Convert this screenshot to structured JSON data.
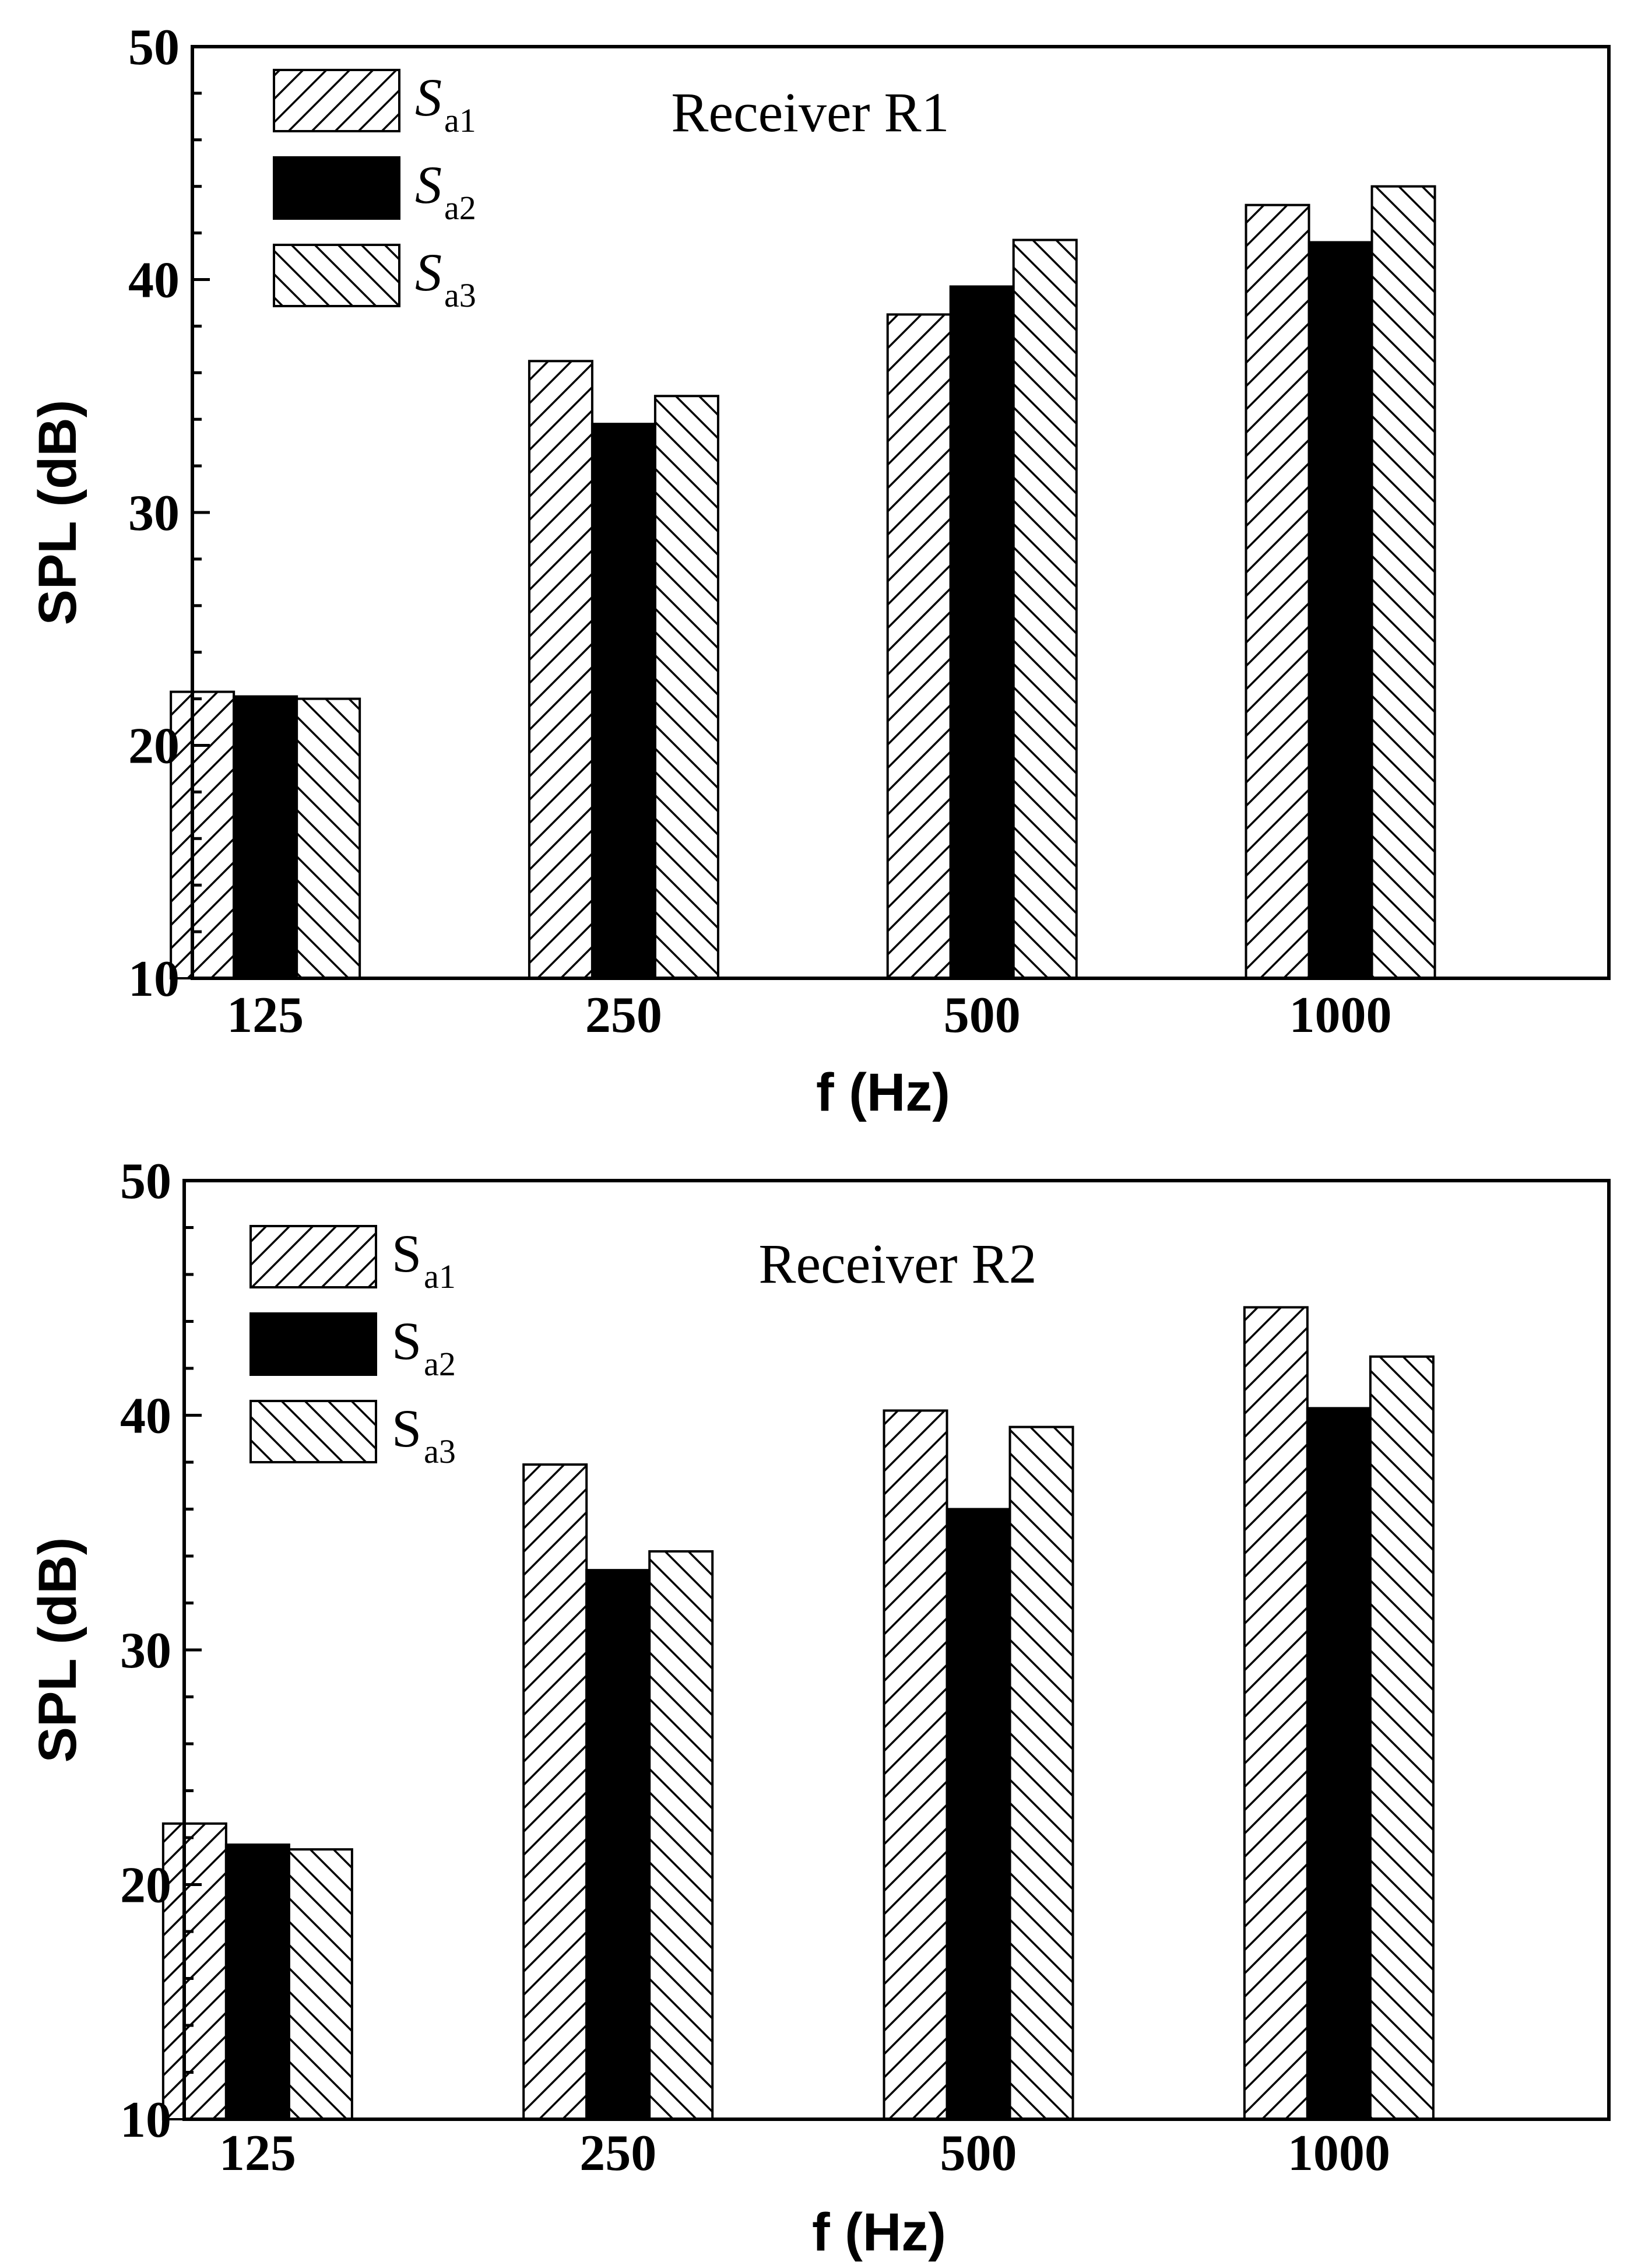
{
  "chart_data": [
    {
      "type": "bar",
      "title": "Receiver R1",
      "xlabel": "f (Hz)",
      "ylabel": "SPL (dB)",
      "ylim": [
        10,
        50
      ],
      "yticks": [
        10,
        20,
        30,
        40,
        50
      ],
      "grid": false,
      "legend_position": "top-left",
      "legend_italic": true,
      "categories": [
        "125",
        "250",
        "500",
        "1000"
      ],
      "series": [
        {
          "name": "S",
          "subscript": "a1",
          "pattern": "hatch-forward",
          "values": [
            22.3,
            36.5,
            38.5,
            43.2
          ]
        },
        {
          "name": "S",
          "subscript": "a2",
          "pattern": "solid",
          "values": [
            22.1,
            33.8,
            39.7,
            41.6
          ]
        },
        {
          "name": "S",
          "subscript": "a3",
          "pattern": "hatch-back",
          "values": [
            22.0,
            35.0,
            41.7,
            44.0
          ]
        }
      ]
    },
    {
      "type": "bar",
      "title": "Receiver R2",
      "xlabel": "f (Hz)",
      "ylabel": "SPL (dB)",
      "ylim": [
        10,
        50
      ],
      "yticks": [
        10,
        20,
        30,
        40,
        50
      ],
      "grid": false,
      "legend_position": "top-left",
      "legend_italic": false,
      "categories": [
        "125",
        "250",
        "500",
        "1000"
      ],
      "series": [
        {
          "name": "S",
          "subscript": "a1",
          "pattern": "hatch-forward",
          "values": [
            22.6,
            37.9,
            40.2,
            44.6
          ]
        },
        {
          "name": "S",
          "subscript": "a2",
          "pattern": "solid",
          "values": [
            21.7,
            33.4,
            36.0,
            40.3
          ]
        },
        {
          "name": "S",
          "subscript": "a3",
          "pattern": "hatch-back",
          "values": [
            21.5,
            34.2,
            39.5,
            42.5
          ]
        }
      ]
    }
  ]
}
